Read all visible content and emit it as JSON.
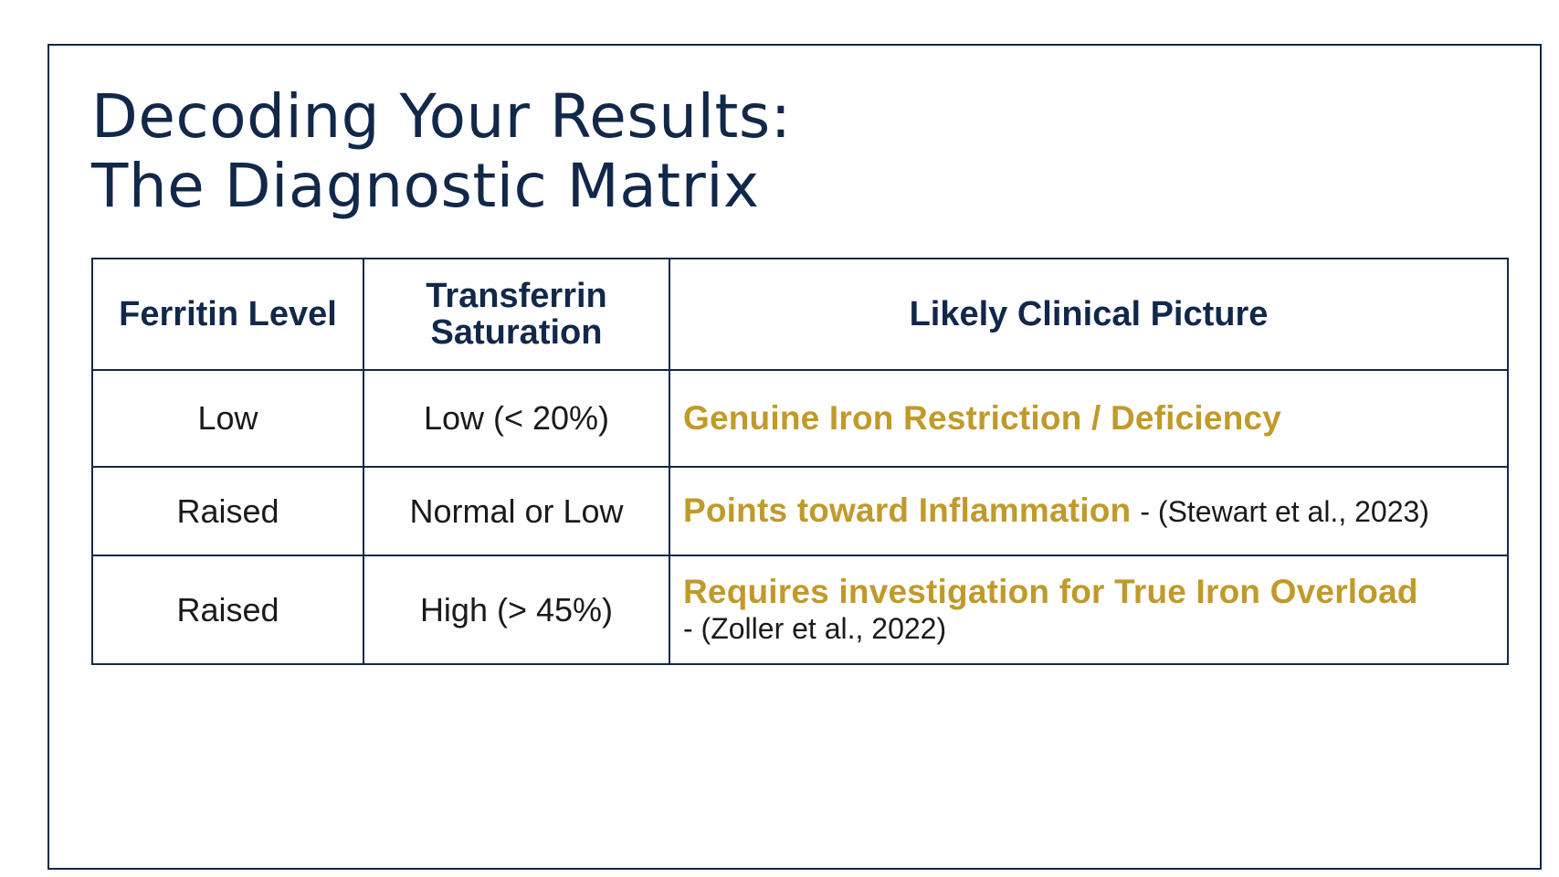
{
  "title": {
    "line1": "Decoding Your Results:",
    "line2": "The Diagnostic Matrix"
  },
  "table": {
    "headers": {
      "ferritin": "Ferritin Level",
      "transferrin_line1": "Transferrin",
      "transferrin_line2": "Saturation",
      "picture": "Likely Clinical Picture"
    },
    "rows": [
      {
        "ferritin": "Low",
        "transferrin": "Low (< 20%)",
        "picture_main": "Genuine Iron Restriction / Deficiency",
        "picture_cite": ""
      },
      {
        "ferritin": "Raised",
        "transferrin": "Normal or Low",
        "picture_main": "Points toward Inflammation",
        "picture_cite": "- (Stewart et al., 2023)"
      },
      {
        "ferritin": "Raised",
        "transferrin": "High (> 45%)",
        "picture_main": "Requires investigation for True Iron Overload",
        "picture_cite": "- (Zoller et al., 2022)"
      }
    ]
  },
  "colors": {
    "navy": "#12284a",
    "gold": "#c09a2a"
  }
}
